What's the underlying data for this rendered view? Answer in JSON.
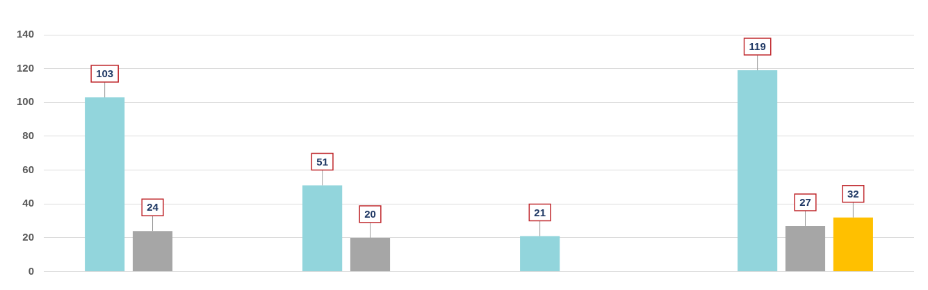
{
  "chart_data": {
    "type": "bar",
    "categories": [
      null,
      null,
      null,
      null
    ],
    "series": [
      {
        "color": "#92d5dc",
        "values": [
          103,
          51,
          21,
          119
        ]
      },
      {
        "color": "#a6a6a6",
        "values": [
          24,
          20,
          null,
          27
        ]
      },
      {
        "color": "#ffc000",
        "values": [
          null,
          null,
          null,
          32
        ]
      }
    ],
    "ylim": [
      0,
      140
    ],
    "yticks": [
      0,
      20,
      40,
      60,
      80,
      100,
      120,
      140
    ],
    "grid": "y",
    "legend": false,
    "data_labels": true
  }
}
